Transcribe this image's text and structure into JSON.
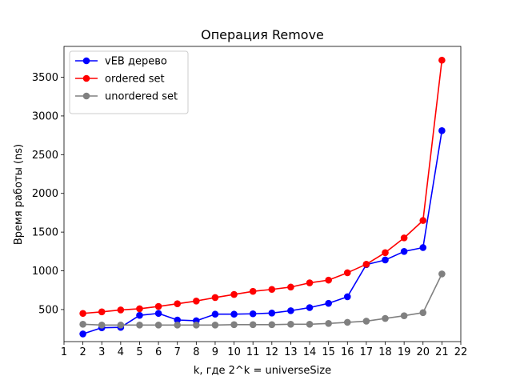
{
  "chart_data": {
    "type": "line",
    "title": "Операция Remove",
    "xlabel": "k, где 2^k = universeSize",
    "ylabel": "Время работы (ns)",
    "xlim": [
      1,
      22
    ],
    "ylim": [
      86,
      3898
    ],
    "xticks": [
      1,
      2,
      3,
      4,
      5,
      6,
      7,
      8,
      9,
      10,
      11,
      12,
      13,
      14,
      15,
      16,
      17,
      18,
      19,
      20,
      21,
      22
    ],
    "yticks": [
      500,
      1000,
      1500,
      2000,
      2500,
      3000,
      3500
    ],
    "grid": false,
    "legend_position": "top-left",
    "x": [
      2,
      3,
      4,
      5,
      6,
      7,
      8,
      9,
      10,
      11,
      12,
      13,
      14,
      15,
      16,
      17,
      18,
      19,
      20,
      21
    ],
    "series": [
      {
        "name": "vEB дерево",
        "color": "#0000ff",
        "values": [
          185,
          265,
          270,
          425,
          450,
          365,
          355,
          440,
          440,
          445,
          455,
          485,
          525,
          580,
          665,
          1080,
          1140,
          1250,
          1300,
          2810
        ]
      },
      {
        "name": "ordered set",
        "color": "#ff0000",
        "values": [
          450,
          470,
          495,
          510,
          540,
          575,
          610,
          655,
          695,
          735,
          760,
          790,
          845,
          880,
          975,
          1085,
          1235,
          1425,
          1650,
          3720
        ]
      },
      {
        "name": "unordered set",
        "color": "#808080",
        "values": [
          310,
          300,
          300,
          300,
          300,
          300,
          300,
          300,
          305,
          305,
          305,
          310,
          310,
          320,
          335,
          350,
          385,
          420,
          460,
          960
        ]
      }
    ]
  }
}
